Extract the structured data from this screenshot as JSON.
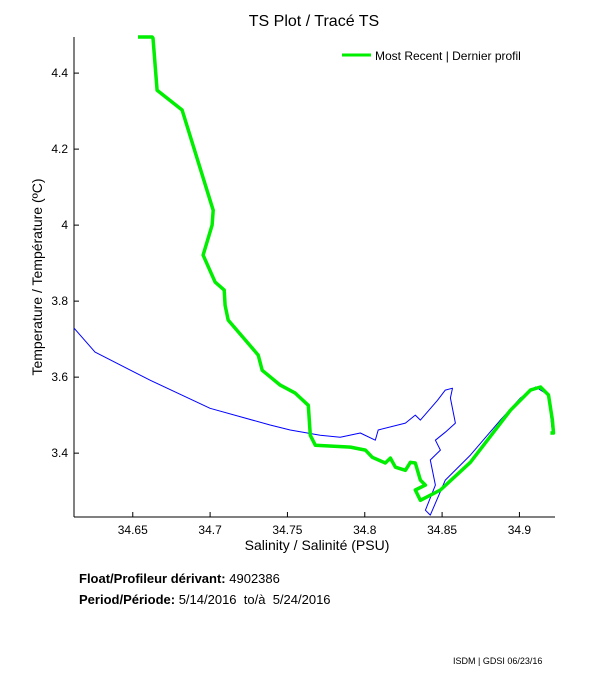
{
  "chart_data": {
    "type": "line",
    "title": "TS Plot / Tracé TS",
    "xlabel": "Salinity / Salinité (PSU)",
    "ylabel": "Temperature / Température (ºC)",
    "xlim": [
      34.612,
      34.923
    ],
    "ylim": [
      3.232,
      4.495
    ],
    "xticks": [
      34.65,
      34.7,
      34.75,
      34.8,
      34.85,
      34.9
    ],
    "xtick_labels": [
      "34.65",
      "34.7",
      "34.75",
      "34.8",
      "34.85",
      "34.9"
    ],
    "yticks": [
      3.4,
      3.6,
      3.8,
      4.0,
      4.2,
      4.4
    ],
    "ytick_labels": [
      "3.4",
      "3.6",
      "3.8",
      "4",
      "4.2",
      "4.4"
    ],
    "grid": false,
    "legend_position": "top-right",
    "series": [
      {
        "color": "#0000ff",
        "points": [
          [
            34.612,
            3.729
          ],
          [
            34.6256,
            3.666
          ],
          [
            34.6612,
            3.592
          ],
          [
            34.7,
            3.518
          ],
          [
            34.7388,
            3.474
          ],
          [
            34.7518,
            3.461
          ],
          [
            34.7712,
            3.447
          ],
          [
            34.7841,
            3.442
          ],
          [
            34.7971,
            3.453
          ],
          [
            34.8068,
            3.434
          ],
          [
            34.8087,
            3.461
          ],
          [
            34.8263,
            3.479
          ],
          [
            34.8327,
            3.5
          ],
          [
            34.836,
            3.487
          ],
          [
            34.847,
            3.539
          ],
          [
            34.8521,
            3.566
          ],
          [
            34.8567,
            3.571
          ],
          [
            34.8554,
            3.545
          ],
          [
            34.8586,
            3.479
          ],
          [
            34.8521,
            3.455
          ],
          [
            34.8457,
            3.434
          ],
          [
            34.8489,
            3.408
          ],
          [
            34.8424,
            3.382
          ],
          [
            34.8457,
            3.316
          ],
          [
            34.8392,
            3.25
          ],
          [
            34.8424,
            3.237
          ],
          [
            34.8521,
            3.329
          ],
          [
            34.8683,
            3.395
          ],
          [
            34.8877,
            3.487
          ],
          [
            34.9006,
            3.545
          ],
          [
            34.9103,
            3.574
          ],
          [
            34.9188,
            3.553
          ],
          [
            34.9213,
            3.455
          ]
        ]
      },
      {
        "name": "Most Recent | Dernier profil",
        "color": "#00ee00",
        "points": [
          [
            34.6534,
            4.495
          ],
          [
            34.6625,
            4.495
          ],
          [
            34.6631,
            4.492
          ],
          [
            34.6657,
            4.355
          ],
          [
            34.6819,
            4.303
          ],
          [
            34.702,
            4.039
          ],
          [
            34.7013,
            4.0
          ],
          [
            34.6955,
            3.921
          ],
          [
            34.7032,
            3.85
          ],
          [
            34.7091,
            3.829
          ],
          [
            34.7097,
            3.789
          ],
          [
            34.7117,
            3.75
          ],
          [
            34.7311,
            3.658
          ],
          [
            34.7337,
            3.618
          ],
          [
            34.7453,
            3.579
          ],
          [
            34.755,
            3.558
          ],
          [
            34.7635,
            3.526
          ],
          [
            34.7648,
            3.447
          ],
          [
            34.768,
            3.421
          ],
          [
            34.7907,
            3.416
          ],
          [
            34.8004,
            3.408
          ],
          [
            34.8049,
            3.389
          ],
          [
            34.8133,
            3.374
          ],
          [
            34.8166,
            3.387
          ],
          [
            34.8198,
            3.363
          ],
          [
            34.8263,
            3.355
          ],
          [
            34.8295,
            3.376
          ],
          [
            34.8327,
            3.374
          ],
          [
            34.836,
            3.329
          ],
          [
            34.8392,
            3.316
          ],
          [
            34.8327,
            3.303
          ],
          [
            34.836,
            3.276
          ],
          [
            34.8489,
            3.303
          ],
          [
            34.8683,
            3.376
          ],
          [
            34.8942,
            3.513
          ],
          [
            34.9071,
            3.566
          ],
          [
            34.9136,
            3.574
          ],
          [
            34.9188,
            3.553
          ],
          [
            34.9213,
            3.487
          ],
          [
            34.922,
            3.453
          ],
          [
            34.92,
            3.453
          ]
        ]
      }
    ]
  },
  "info": {
    "float_label": "Float/Profileur dérivant:",
    "float_value": "4902386",
    "period_label": "Period/Période:",
    "period_start": "5/14/2016",
    "period_sep": "to/à",
    "period_end": "5/24/2016"
  },
  "credit": "ISDM | GDSI 06/23/16"
}
